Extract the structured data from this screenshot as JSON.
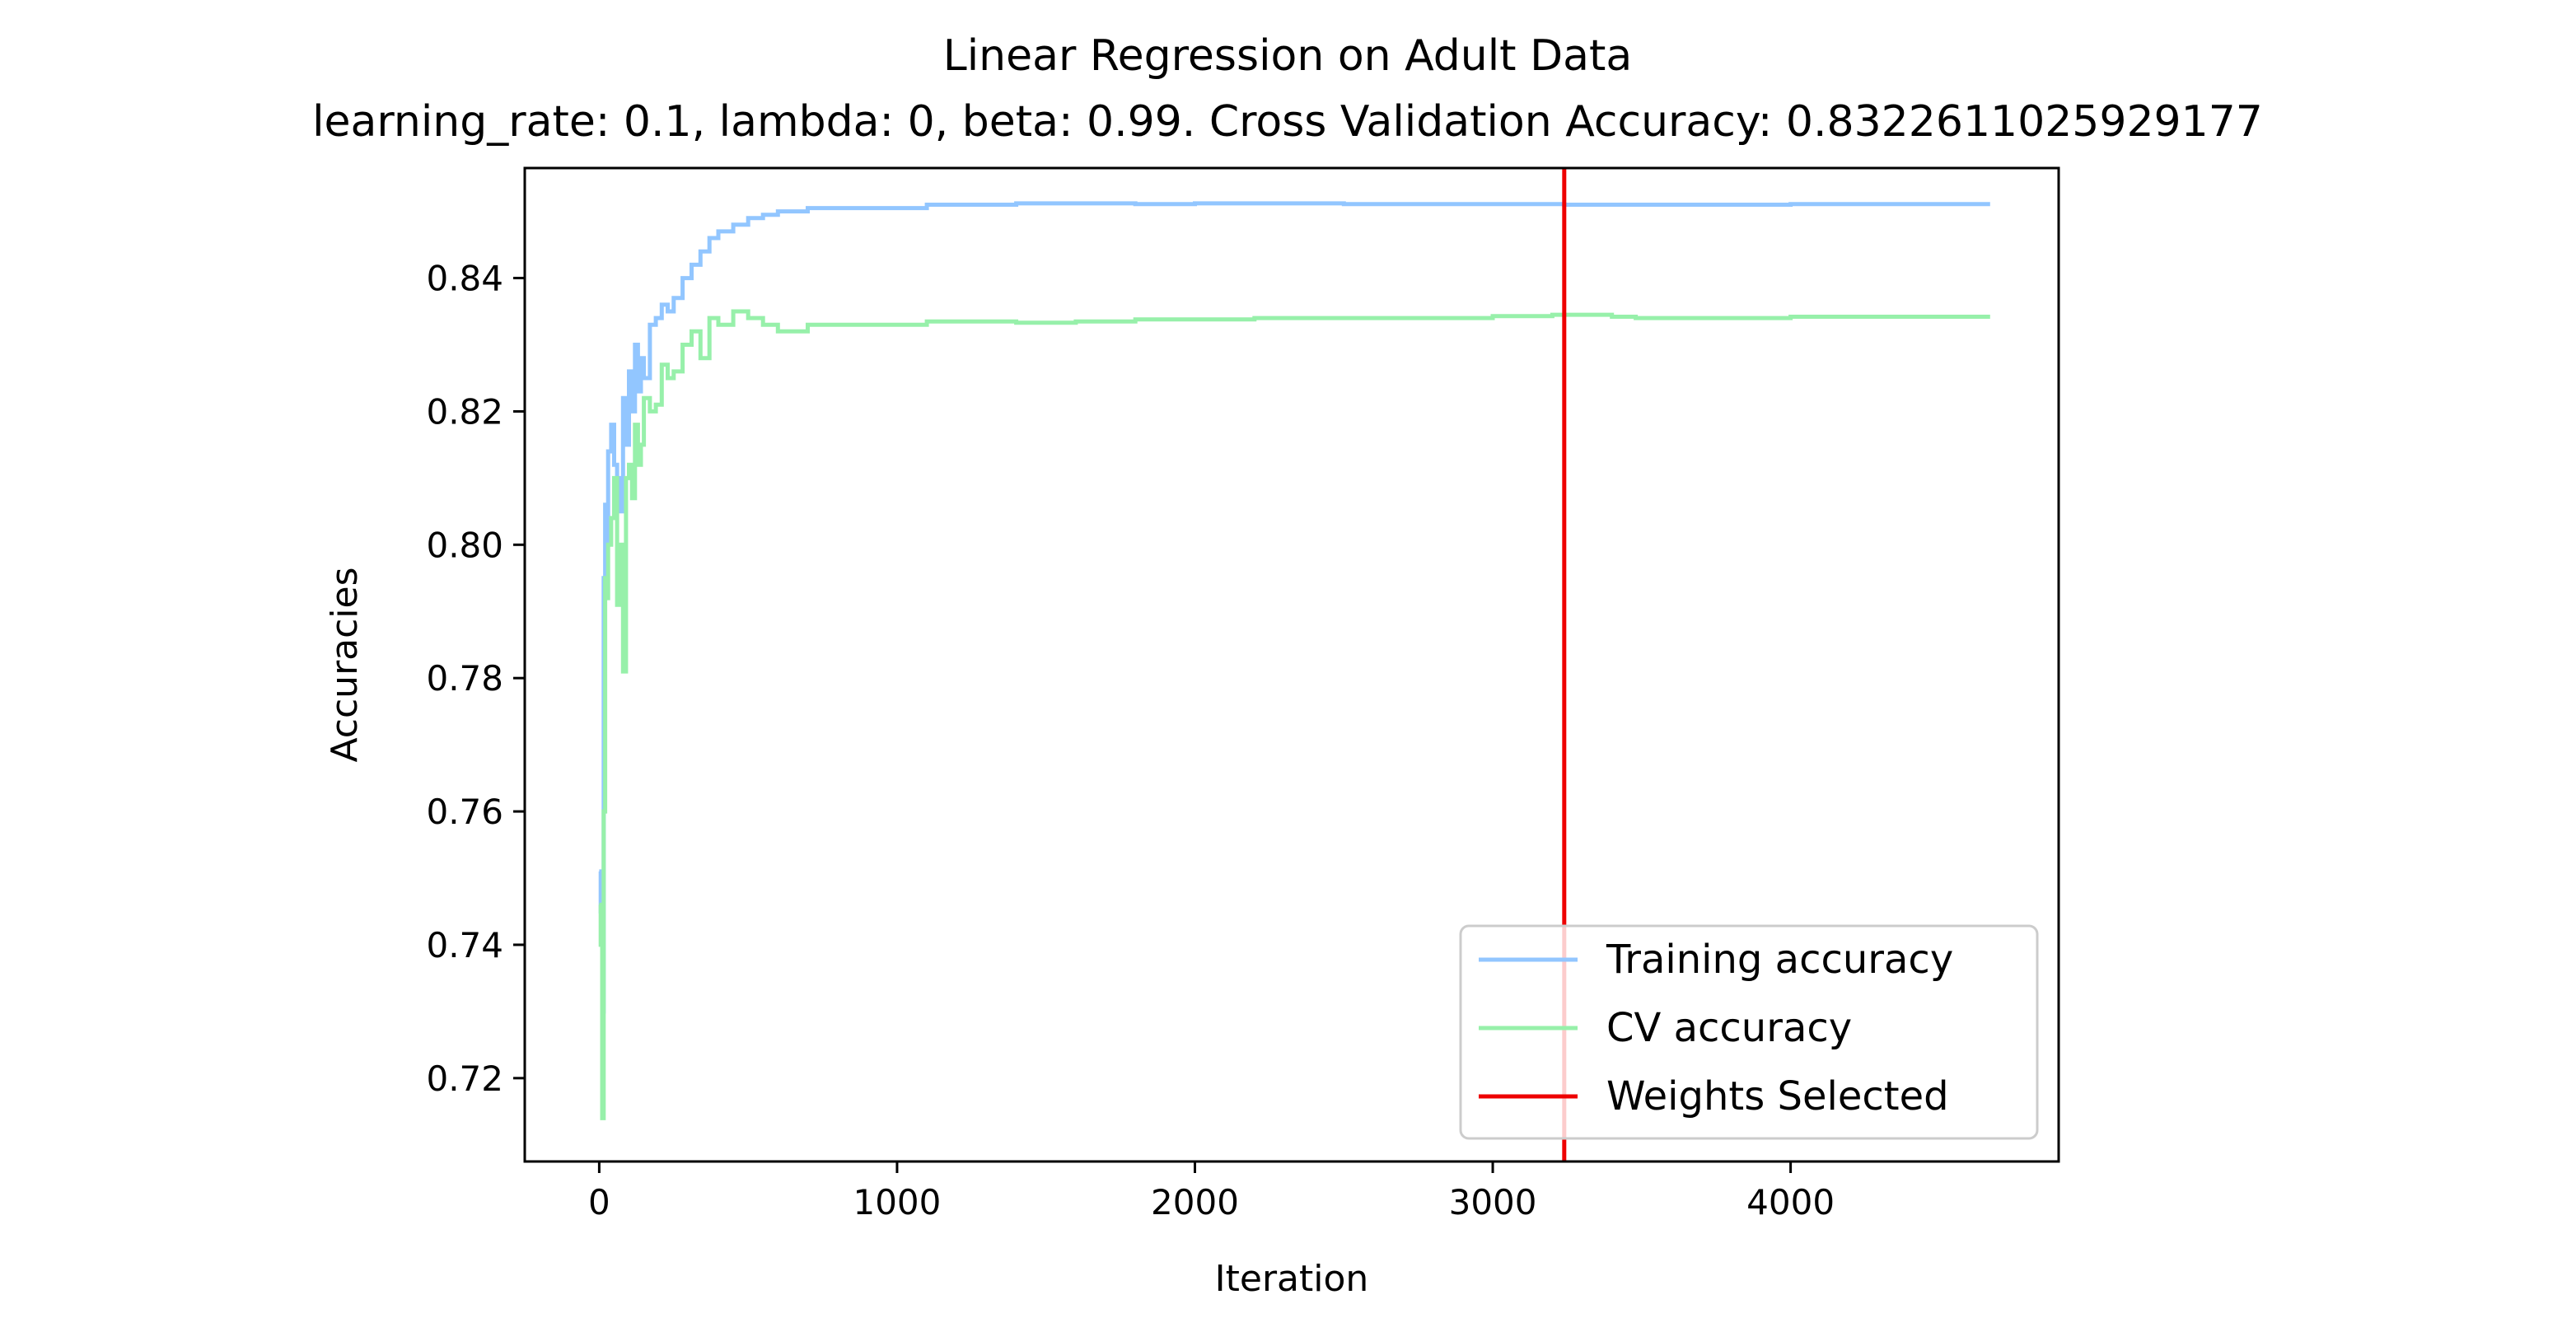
{
  "chart_data": {
    "type": "line",
    "title": "Linear Regression on Adult Data",
    "subtitle": "learning_rate: 0.1, lambda: 0, beta: 0.99. Cross Validation Accuracy: 0.8322611025929177",
    "xlabel": "Iteration",
    "ylabel": "Accuracies",
    "xlim": [
      -250,
      4900
    ],
    "ylim": [
      0.7075,
      0.8565
    ],
    "xticks": [
      0,
      1000,
      2000,
      3000,
      4000
    ],
    "xtick_labels": [
      "0",
      "1000",
      "2000",
      "3000",
      "4000"
    ],
    "yticks": [
      0.72,
      0.74,
      0.76,
      0.78,
      0.8,
      0.82,
      0.84
    ],
    "ytick_labels": [
      "0.72",
      "0.74",
      "0.76",
      "0.78",
      "0.80",
      "0.82",
      "0.84"
    ],
    "grid": false,
    "legend_position": "lower-right",
    "series": [
      {
        "name": "Training accuracy",
        "color": "#92c6ff",
        "x": [
          0,
          5,
          10,
          15,
          20,
          25,
          30,
          40,
          50,
          60,
          70,
          80,
          90,
          100,
          110,
          120,
          130,
          140,
          150,
          170,
          190,
          210,
          230,
          250,
          280,
          310,
          340,
          370,
          400,
          450,
          500,
          550,
          600,
          700,
          800,
          900,
          1000,
          1100,
          1200,
          1400,
          1600,
          1800,
          2000,
          2500,
          3000,
          3240,
          3500,
          4000,
          4500,
          4670
        ],
        "values": [
          0.751,
          0.745,
          0.73,
          0.795,
          0.806,
          0.8,
          0.814,
          0.818,
          0.812,
          0.81,
          0.805,
          0.822,
          0.815,
          0.826,
          0.82,
          0.83,
          0.823,
          0.828,
          0.825,
          0.833,
          0.834,
          0.836,
          0.835,
          0.837,
          0.84,
          0.842,
          0.844,
          0.846,
          0.847,
          0.848,
          0.849,
          0.8495,
          0.85,
          0.8505,
          0.8505,
          0.8505,
          0.8505,
          0.851,
          0.851,
          0.8512,
          0.8512,
          0.8511,
          0.8512,
          0.8511,
          0.8511,
          0.851,
          0.851,
          0.8511,
          0.8511,
          0.8511
        ]
      },
      {
        "name": "CV accuracy",
        "color": "#97f0aa",
        "x": [
          0,
          5,
          10,
          15,
          20,
          25,
          30,
          40,
          50,
          60,
          70,
          80,
          90,
          100,
          110,
          120,
          130,
          140,
          150,
          170,
          190,
          210,
          230,
          250,
          280,
          310,
          340,
          370,
          400,
          450,
          500,
          550,
          600,
          700,
          800,
          900,
          1000,
          1100,
          1200,
          1400,
          1600,
          1800,
          2000,
          2200,
          2500,
          3000,
          3200,
          3400,
          3480,
          4000,
          4500,
          4670
        ],
        "values": [
          0.746,
          0.74,
          0.714,
          0.76,
          0.795,
          0.792,
          0.8,
          0.804,
          0.81,
          0.791,
          0.8,
          0.781,
          0.81,
          0.812,
          0.807,
          0.818,
          0.812,
          0.815,
          0.822,
          0.82,
          0.821,
          0.827,
          0.825,
          0.826,
          0.83,
          0.832,
          0.828,
          0.834,
          0.833,
          0.835,
          0.834,
          0.833,
          0.832,
          0.833,
          0.833,
          0.833,
          0.833,
          0.8335,
          0.8335,
          0.8333,
          0.8335,
          0.8338,
          0.8338,
          0.834,
          0.834,
          0.8343,
          0.8345,
          0.8342,
          0.834,
          0.8342,
          0.8342,
          0.8342
        ]
      },
      {
        "name": "Weights Selected",
        "color": "#ee0000",
        "vline_x": 3240
      }
    ]
  }
}
